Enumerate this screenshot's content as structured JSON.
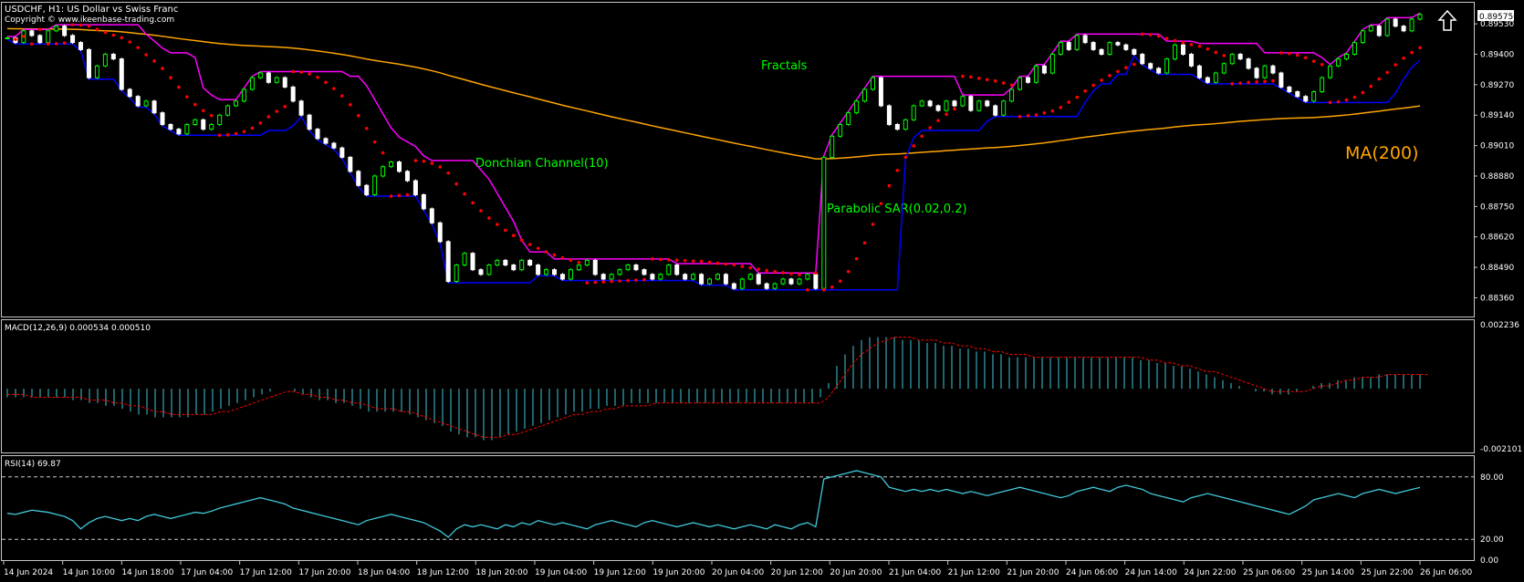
{
  "header": {
    "title": "USDCHF, H1:  US Dollar vs Swiss Franc",
    "copyright": "Copyright © www.ikeenbase-trading.com"
  },
  "annotations": {
    "fractals": "Fractals",
    "donchian": "Donchian Channel(10)",
    "sar": "Parabolic SAR(0.02,0.2)",
    "ma": "MA(200)"
  },
  "price_axis": {
    "ticks": [
      "0.89530",
      "0.89400",
      "0.89270",
      "0.89140",
      "0.89010",
      "0.88880",
      "0.88750",
      "0.88620",
      "0.88490",
      "0.88360"
    ],
    "current_price": "0.89575"
  },
  "macd": {
    "label": "MACD(12,26,9) 0.000534 0.000510",
    "ticks": [
      "0.002236",
      "-0.002101"
    ]
  },
  "rsi": {
    "label": "RSI(14) 69.87",
    "ticks": [
      "80.00",
      "20.00",
      "0.00"
    ]
  },
  "time_axis": [
    "14 Jun 2024",
    "14 Jun 10:00",
    "14 Jun 18:00",
    "17 Jun 04:00",
    "17 Jun 12:00",
    "17 Jun 20:00",
    "18 Jun 04:00",
    "18 Jun 12:00",
    "18 Jun 20:00",
    "19 Jun 04:00",
    "19 Jun 12:00",
    "19 Jun 20:00",
    "20 Jun 04:00",
    "20 Jun 12:00",
    "20 Jun 20:00",
    "21 Jun 04:00",
    "21 Jun 12:00",
    "21 Jun 20:00",
    "24 Jun 06:00",
    "24 Jun 14:00",
    "24 Jun 22:00",
    "25 Jun 06:00",
    "25 Jun 14:00",
    "25 Jun 22:00",
    "26 Jun 06:00"
  ],
  "colors": {
    "background": "#000000",
    "bull_candle": "#00ff00",
    "bear_candle": "#ffffff",
    "donchian_upper": "#ff00ff",
    "donchian_lower": "#0000ff",
    "sar": "#ff0000",
    "ma": "#ffa500",
    "macd_hist": "#40c8d8",
    "macd_signal": "#ff0000",
    "rsi": "#40c8d8",
    "fractal": "#40c8d8",
    "label_green": "#00ff00"
  },
  "icons": {
    "buy_signal": "up-arrow-icon"
  },
  "chart_data": [
    {
      "type": "candlestick",
      "title": "USDCHF, H1:  US Dollar vs Swiss Franc",
      "ylim": [
        0.8828,
        0.8962
      ],
      "x_ticks": [
        "14 Jun 2024",
        "14 Jun 10:00",
        "14 Jun 18:00",
        "17 Jun 04:00",
        "17 Jun 12:00",
        "17 Jun 20:00",
        "18 Jun 04:00",
        "18 Jun 12:00",
        "18 Jun 20:00",
        "19 Jun 04:00",
        "19 Jun 12:00",
        "19 Jun 20:00",
        "20 Jun 04:00",
        "20 Jun 12:00",
        "20 Jun 20:00",
        "21 Jun 04:00",
        "21 Jun 12:00",
        "21 Jun 20:00",
        "24 Jun 06:00",
        "24 Jun 14:00",
        "24 Jun 22:00",
        "25 Jun 06:00",
        "25 Jun 14:00",
        "25 Jun 22:00",
        "26 Jun 06:00"
      ],
      "close": [
        0.8947,
        0.8945,
        0.895,
        0.8948,
        0.8945,
        0.895,
        0.8952,
        0.8948,
        0.8945,
        0.8942,
        0.893,
        0.8935,
        0.894,
        0.8938,
        0.8925,
        0.8922,
        0.8918,
        0.892,
        0.8915,
        0.891,
        0.8908,
        0.8906,
        0.891,
        0.8912,
        0.8908,
        0.891,
        0.8914,
        0.8918,
        0.892,
        0.8925,
        0.893,
        0.8932,
        0.8928,
        0.893,
        0.8926,
        0.892,
        0.8914,
        0.8908,
        0.8904,
        0.8902,
        0.89,
        0.8896,
        0.889,
        0.8884,
        0.888,
        0.8888,
        0.8892,
        0.8894,
        0.889,
        0.8886,
        0.888,
        0.8874,
        0.8868,
        0.886,
        0.8843,
        0.885,
        0.8855,
        0.8848,
        0.8846,
        0.885,
        0.8852,
        0.885,
        0.8848,
        0.8852,
        0.885,
        0.8846,
        0.8848,
        0.8846,
        0.8844,
        0.8848,
        0.885,
        0.8852,
        0.8846,
        0.8844,
        0.8846,
        0.8848,
        0.885,
        0.8848,
        0.8846,
        0.8844,
        0.8846,
        0.885,
        0.8846,
        0.8844,
        0.8846,
        0.8842,
        0.8844,
        0.8846,
        0.8842,
        0.884,
        0.8844,
        0.8846,
        0.8842,
        0.884,
        0.8842,
        0.8844,
        0.8842,
        0.8844,
        0.8846,
        0.884,
        0.8896,
        0.8905,
        0.891,
        0.8915,
        0.892,
        0.8925,
        0.893,
        0.8918,
        0.891,
        0.8908,
        0.8912,
        0.8918,
        0.892,
        0.8918,
        0.8916,
        0.892,
        0.8918,
        0.8922,
        0.8916,
        0.892,
        0.8918,
        0.8914,
        0.892,
        0.8925,
        0.893,
        0.8928,
        0.8935,
        0.8932,
        0.894,
        0.8945,
        0.8942,
        0.8948,
        0.8945,
        0.8942,
        0.894,
        0.8945,
        0.8944,
        0.8942,
        0.894,
        0.8936,
        0.8934,
        0.8932,
        0.8938,
        0.8944,
        0.894,
        0.8935,
        0.893,
        0.8928,
        0.8932,
        0.8936,
        0.894,
        0.8938,
        0.8934,
        0.893,
        0.8935,
        0.8932,
        0.8926,
        0.8924,
        0.8922,
        0.892,
        0.8924,
        0.893,
        0.8935,
        0.8938,
        0.894,
        0.8945,
        0.895,
        0.8952,
        0.8948,
        0.8955,
        0.8952,
        0.895,
        0.8955,
        0.8957
      ]
    },
    {
      "type": "line",
      "title": "MACD(12,26,9) 0.000534 0.000510",
      "ylim": [
        -0.002101,
        0.002236
      ],
      "series": [
        {
          "name": "MACD(12,26,9)",
          "render": "histogram",
          "values": [
            -0.0003,
            -0.0003,
            -0.0003,
            -0.0003,
            -0.0003,
            -0.0003,
            -0.0003,
            -0.0003,
            -0.0004,
            -0.0004,
            -0.0005,
            -0.0005,
            -0.0006,
            -0.0006,
            -0.0007,
            -0.0008,
            -0.0009,
            -0.0009,
            -0.001,
            -0.001,
            -0.001,
            -0.001,
            -0.001,
            -0.0009,
            -0.0009,
            -0.0008,
            -0.0007,
            -0.0006,
            -0.0005,
            -0.0004,
            -0.0003,
            -0.0002,
            -0.0001,
            0.0,
            0.0,
            -0.0001,
            -0.0002,
            -0.0003,
            -0.0004,
            -0.0004,
            -0.0005,
            -0.0005,
            -0.0006,
            -0.0007,
            -0.0008,
            -0.0008,
            -0.0008,
            -0.0008,
            -0.0008,
            -0.0009,
            -0.001,
            -0.0011,
            -0.0012,
            -0.0013,
            -0.0015,
            -0.0016,
            -0.0017,
            -0.0017,
            -0.0018,
            -0.0018,
            -0.0017,
            -0.0016,
            -0.0015,
            -0.0014,
            -0.0013,
            -0.0012,
            -0.0011,
            -0.001,
            -0.0009,
            -0.0008,
            -0.0008,
            -0.0007,
            -0.0007,
            -0.0006,
            -0.0006,
            -0.0006,
            -0.0005,
            -0.0005,
            -0.0005,
            -0.0005,
            -0.0005,
            -0.0005,
            -0.0005,
            -0.0005,
            -0.0005,
            -0.0005,
            -0.0005,
            -0.0005,
            -0.0005,
            -0.0005,
            -0.0005,
            -0.0005,
            -0.0005,
            -0.0005,
            -0.0005,
            -0.0005,
            -0.0005,
            -0.0005,
            -0.0005,
            -0.0003,
            0.0002,
            0.0008,
            0.0012,
            0.0015,
            0.0017,
            0.0018,
            0.0018,
            0.0018,
            0.0018,
            0.0017,
            0.0017,
            0.0017,
            0.0016,
            0.0016,
            0.0015,
            0.0015,
            0.0014,
            0.0014,
            0.0013,
            0.0013,
            0.0012,
            0.0012,
            0.0011,
            0.0011,
            0.0011,
            0.0011,
            0.0011,
            0.0011,
            0.0011,
            0.0011,
            0.0011,
            0.0011,
            0.0011,
            0.0011,
            0.0011,
            0.0011,
            0.0011,
            0.0011,
            0.001,
            0.001,
            0.0009,
            0.0009,
            0.0008,
            0.0008,
            0.0007,
            0.0006,
            0.0005,
            0.0004,
            0.0003,
            0.0002,
            0.0001,
            0.0,
            -0.0001,
            -0.0001,
            -0.0002,
            -0.0002,
            -0.0002,
            -0.0001,
            0.0,
            0.0001,
            0.0002,
            0.0002,
            0.0003,
            0.0003,
            0.0004,
            0.0004,
            0.0004,
            0.0005,
            0.0005,
            0.0005,
            0.0005,
            0.0005,
            0.0005
          ]
        },
        {
          "name": "signal",
          "render": "dashed",
          "values": [
            -0.0002,
            -0.0002,
            -0.0002,
            -0.0003,
            -0.0003,
            -0.0003,
            -0.0003,
            -0.0003,
            -0.0003,
            -0.0003,
            -0.0004,
            -0.0004,
            -0.0004,
            -0.0005,
            -0.0005,
            -0.0006,
            -0.0006,
            -0.0007,
            -0.0008,
            -0.0008,
            -0.0009,
            -0.0009,
            -0.0009,
            -0.0009,
            -0.0009,
            -0.0009,
            -0.0008,
            -0.0008,
            -0.0007,
            -0.0006,
            -0.0005,
            -0.0004,
            -0.0003,
            -0.0002,
            -0.0001,
            -0.0001,
            -0.0002,
            -0.0002,
            -0.0003,
            -0.0003,
            -0.0004,
            -0.0004,
            -0.0005,
            -0.0005,
            -0.0006,
            -0.0007,
            -0.0007,
            -0.0007,
            -0.0008,
            -0.0008,
            -0.0009,
            -0.001,
            -0.0011,
            -0.0012,
            -0.0013,
            -0.0014,
            -0.0015,
            -0.0016,
            -0.0017,
            -0.0017,
            -0.0017,
            -0.0016,
            -0.0016,
            -0.0015,
            -0.0014,
            -0.0013,
            -0.0012,
            -0.0011,
            -0.001,
            -0.0009,
            -0.0009,
            -0.0008,
            -0.0008,
            -0.0007,
            -0.0007,
            -0.0006,
            -0.0006,
            -0.0006,
            -0.0006,
            -0.0005,
            -0.0005,
            -0.0005,
            -0.0005,
            -0.0005,
            -0.0005,
            -0.0005,
            -0.0005,
            -0.0005,
            -0.0005,
            -0.0005,
            -0.0005,
            -0.0005,
            -0.0005,
            -0.0005,
            -0.0005,
            -0.0005,
            -0.0005,
            -0.0005,
            -0.0005,
            -0.0005,
            -0.0003,
            0.0001,
            0.0005,
            0.0009,
            0.0012,
            0.0014,
            0.0016,
            0.0017,
            0.0018,
            0.0018,
            0.0018,
            0.0017,
            0.0017,
            0.0017,
            0.0016,
            0.0016,
            0.0015,
            0.0015,
            0.0014,
            0.0014,
            0.0013,
            0.0013,
            0.0012,
            0.0012,
            0.0012,
            0.0011,
            0.0011,
            0.0011,
            0.0011,
            0.0011,
            0.0011,
            0.0011,
            0.0011,
            0.0011,
            0.0011,
            0.0011,
            0.0011,
            0.0011,
            0.0011,
            0.001,
            0.001,
            0.0009,
            0.0009,
            0.0008,
            0.0008,
            0.0007,
            0.0006,
            0.0006,
            0.0005,
            0.0004,
            0.0003,
            0.0002,
            0.0001,
            0.0,
            -0.0001,
            -0.0001,
            -0.0001,
            -0.0001,
            -0.0001,
            0.0,
            0.0001,
            0.0001,
            0.0002,
            0.0003,
            0.0003,
            0.0004,
            0.0004,
            0.0004,
            0.0005,
            0.0005,
            0.0005,
            0.0005,
            0.0005,
            0.0005
          ]
        }
      ]
    },
    {
      "type": "line",
      "title": "RSI(14) 69.87",
      "ylim": [
        0,
        100
      ],
      "levels": [
        80,
        20
      ],
      "series": [
        {
          "name": "RSI(14)",
          "values": [
            45,
            44,
            46,
            48,
            47,
            46,
            44,
            42,
            38,
            30,
            36,
            40,
            42,
            40,
            38,
            40,
            38,
            42,
            44,
            42,
            40,
            42,
            44,
            46,
            45,
            47,
            50,
            52,
            54,
            56,
            58,
            60,
            58,
            56,
            54,
            50,
            48,
            46,
            44,
            42,
            40,
            38,
            36,
            34,
            38,
            40,
            42,
            44,
            42,
            40,
            38,
            36,
            32,
            28,
            22,
            30,
            34,
            32,
            34,
            32,
            30,
            34,
            32,
            36,
            34,
            38,
            36,
            34,
            36,
            34,
            32,
            30,
            34,
            36,
            38,
            36,
            34,
            32,
            36,
            38,
            36,
            34,
            32,
            34,
            36,
            34,
            32,
            34,
            32,
            30,
            32,
            34,
            32,
            30,
            34,
            32,
            30,
            34,
            36,
            32,
            78,
            80,
            82,
            84,
            86,
            84,
            82,
            80,
            70,
            68,
            66,
            68,
            66,
            68,
            66,
            68,
            66,
            64,
            66,
            64,
            62,
            64,
            66,
            68,
            70,
            68,
            66,
            64,
            62,
            60,
            62,
            66,
            68,
            70,
            68,
            66,
            70,
            72,
            70,
            68,
            64,
            62,
            60,
            58,
            56,
            60,
            62,
            64,
            62,
            60,
            58,
            56,
            54,
            52,
            50,
            48,
            46,
            44,
            48,
            52,
            58,
            60,
            62,
            64,
            62,
            60,
            64,
            66,
            68,
            66,
            64,
            66,
            68,
            69.87
          ]
        }
      ]
    }
  ]
}
